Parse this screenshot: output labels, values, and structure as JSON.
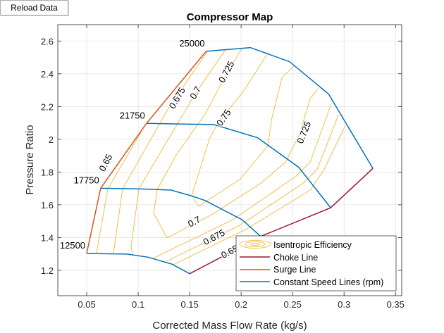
{
  "toolbar": {
    "reload_label": "Reload Data"
  },
  "chart_data": {
    "type": "line",
    "title": "Compressor Map",
    "xlabel": "Corrected Mass Flow Rate (kg/s)",
    "ylabel": "Pressure Ratio",
    "xlim": [
      0.0219,
      0.356
    ],
    "ylim": [
      1.045,
      2.7
    ],
    "xticks": [
      "0.05",
      "0.1",
      "0.15",
      "0.2",
      "0.25",
      "0.3",
      "0.35"
    ],
    "yticks": [
      "1.2",
      "1.4",
      "1.6",
      "1.8",
      "2",
      "2.2",
      "2.4",
      "2.6"
    ],
    "grid": true,
    "legend_position": "bottom-right",
    "colors": {
      "speed": "#0072BD",
      "surge": "#D95319",
      "choke": "#A2142F",
      "efficiency": "#EDB120",
      "grid": "#e3e3e3"
    },
    "legend": [
      "Isentropic Efficiency",
      "Choke Line",
      "Surge Line",
      "Constant Speed Lines (rpm)"
    ],
    "speed_lines": [
      {
        "rpm": "12500",
        "points": [
          [
            0.05,
            1.303
          ],
          [
            0.089,
            1.299
          ],
          [
            0.1095,
            1.28
          ],
          [
            0.133,
            1.237
          ],
          [
            0.15,
            1.179
          ]
        ]
      },
      {
        "rpm": "17750",
        "points": [
          [
            0.0635,
            1.701
          ],
          [
            0.1005,
            1.697
          ],
          [
            0.132,
            1.69
          ],
          [
            0.152,
            1.654
          ],
          [
            0.165,
            1.626
          ],
          [
            0.201,
            1.509
          ],
          [
            0.219,
            1.407
          ]
        ]
      },
      {
        "rpm": "21750",
        "points": [
          [
            0.108,
            2.097
          ],
          [
            0.1735,
            2.09
          ],
          [
            0.216,
            2.009
          ],
          [
            0.256,
            1.829
          ],
          [
            0.287,
            1.582
          ]
        ]
      },
      {
        "rpm": "25000",
        "points": [
          [
            0.166,
            2.537
          ],
          [
            0.209,
            2.56
          ],
          [
            0.247,
            2.474
          ],
          [
            0.285,
            2.276
          ],
          [
            0.328,
            1.822
          ]
        ]
      }
    ],
    "surge_line": [
      [
        0.05,
        1.303
      ],
      [
        0.0635,
        1.701
      ],
      [
        0.108,
        2.097
      ],
      [
        0.166,
        2.537
      ]
    ],
    "choke_line": [
      [
        0.15,
        1.179
      ],
      [
        0.219,
        1.407
      ],
      [
        0.287,
        1.582
      ],
      [
        0.328,
        1.822
      ]
    ],
    "efficiency_contours": [
      {
        "level": 0.65,
        "points": [
          [
            0.0596,
            1.307
          ],
          [
            0.0705,
            1.698
          ],
          [
            0.1027,
            2.042
          ]
        ]
      },
      {
        "level": 0.675,
        "points": [
          [
            0.076,
            1.307
          ],
          [
            0.0849,
            1.698
          ],
          [
            0.1301,
            2.196
          ],
          [
            0.1671,
            2.535
          ]
        ]
      },
      {
        "level": 0.7,
        "points": [
          [
            0.0945,
            1.294
          ],
          [
            0.0932,
            1.346
          ],
          [
            0.1007,
            1.698
          ],
          [
            0.1555,
            2.278
          ],
          [
            0.1849,
            2.548
          ]
        ]
      },
      {
        "level": 0.725,
        "points": [
          [
            0.2007,
            2.553
          ],
          [
            0.1863,
            2.407
          ],
          [
            0.1658,
            2.162
          ],
          [
            0.137,
            1.904
          ],
          [
            0.1185,
            1.694
          ],
          [
            0.1151,
            1.548
          ],
          [
            0.1281,
            1.398
          ],
          [
            0.1712,
            1.539
          ],
          [
            0.2192,
            1.732
          ],
          [
            0.2432,
            1.861
          ],
          [
            0.2568,
            2.033
          ],
          [
            0.2671,
            2.248
          ],
          [
            0.2753,
            2.312
          ]
        ]
      },
      {
        "level": 0.75,
        "points": [
          [
            0.226,
            2.527
          ],
          [
            0.2021,
            2.291
          ],
          [
            0.1781,
            2.106
          ],
          [
            0.1692,
            2.003
          ],
          [
            0.152,
            1.655
          ],
          [
            0.1589,
            1.591
          ],
          [
            0.1986,
            1.754
          ],
          [
            0.226,
            1.96
          ],
          [
            0.2295,
            2.119
          ],
          [
            0.2397,
            2.376
          ],
          [
            0.2514,
            2.449
          ]
        ]
      },
      {
        "level": 0.7,
        "points": [
          [
            0.1144,
            1.273
          ],
          [
            0.1918,
            1.509
          ],
          [
            0.2534,
            1.775
          ],
          [
            0.2671,
            1.861
          ],
          [
            0.2877,
            2.218
          ]
        ]
      },
      {
        "level": 0.675,
        "points": [
          [
            0.1267,
            1.252
          ],
          [
            0.1986,
            1.475
          ],
          [
            0.2603,
            1.732
          ],
          [
            0.274,
            1.818
          ],
          [
            0.2945,
            2.149
          ]
        ]
      },
      {
        "level": 0.65,
        "points": [
          [
            0.1342,
            1.234
          ],
          [
            0.2055,
            1.453
          ],
          [
            0.2671,
            1.689
          ],
          [
            0.2808,
            1.818
          ],
          [
            0.3014,
            2.085
          ]
        ]
      }
    ],
    "contour_labels": [
      {
        "text": "0.65",
        "x": 0.069,
        "y": 1.855
      },
      {
        "text": "0.675",
        "x": 0.1384,
        "y": 2.25
      },
      {
        "text": "0.7",
        "x": 0.1562,
        "y": 2.282
      },
      {
        "text": "0.725",
        "x": 0.1863,
        "y": 2.41
      },
      {
        "text": "0.75",
        "x": 0.1836,
        "y": 2.13
      },
      {
        "text": "0.725",
        "x": 0.2616,
        "y": 2.04
      },
      {
        "text": "0.7",
        "x": 0.163,
        "y": 1.433
      },
      {
        "text": "0.675",
        "x": 0.174,
        "y": 1.398
      },
      {
        "text": "0.65",
        "x": 0.181,
        "y": 1.37
      }
    ]
  }
}
